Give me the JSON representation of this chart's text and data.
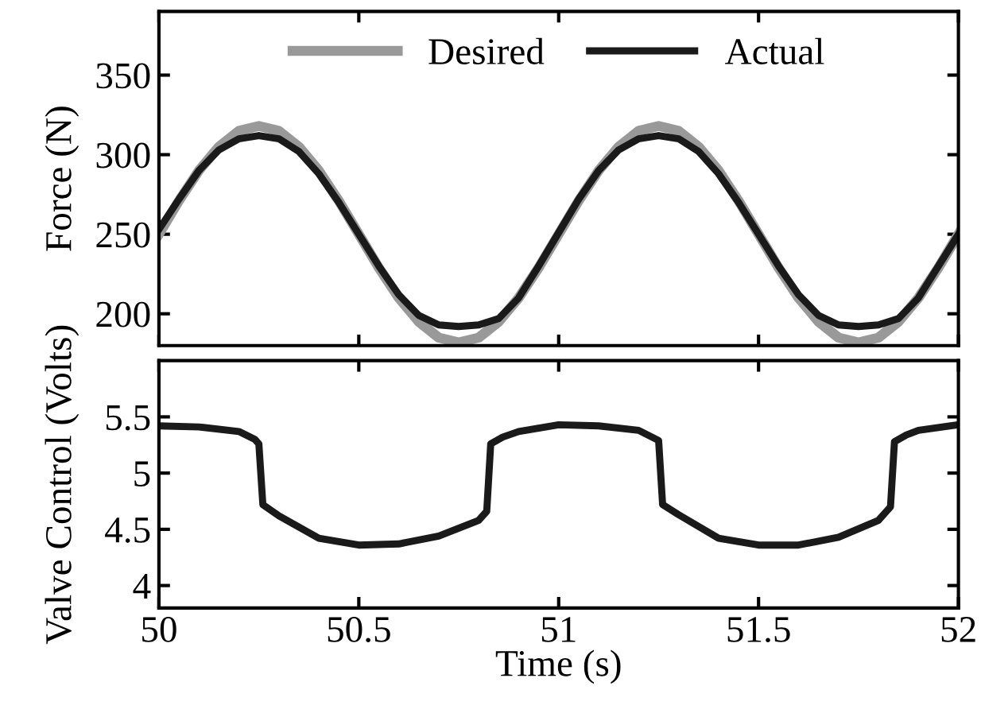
{
  "chart_data": [
    {
      "type": "line",
      "ylabel": "Force (N)",
      "xlim": [
        50,
        52
      ],
      "xticks": [
        50,
        50.5,
        51,
        51.5,
        52
      ],
      "ylim": [
        180,
        390
      ],
      "yticks": [
        200,
        250,
        300,
        350
      ],
      "tick_labels": "y",
      "legend": "top",
      "grid": false,
      "x": [
        50,
        50.05,
        50.1,
        50.15,
        50.2,
        50.25,
        50.3,
        50.35,
        50.4,
        50.45,
        50.5,
        50.55,
        50.6,
        50.65,
        50.7,
        50.75,
        50.8,
        50.85,
        50.9,
        50.95,
        51,
        51.05,
        51.1,
        51.15,
        51.2,
        51.25,
        51.3,
        51.35,
        51.4,
        51.45,
        51.5,
        51.55,
        51.6,
        51.65,
        51.7,
        51.75,
        51.8,
        51.85,
        51.9,
        51.95,
        52
      ],
      "series": [
        {
          "name": "Desired",
          "color": "#999999",
          "values": [
            250,
            271,
            290,
            305,
            315,
            318,
            315,
            305,
            290,
            271,
            250,
            229,
            210,
            195,
            185,
            182,
            185,
            195,
            210,
            229,
            250,
            271,
            290,
            305,
            315,
            318,
            315,
            305,
            290,
            271,
            250,
            229,
            210,
            195,
            185,
            182,
            185,
            195,
            210,
            229,
            250
          ]
        },
        {
          "name": "Actual",
          "color": "#1a1a1a",
          "values": [
            253,
            272,
            290,
            303,
            310,
            312,
            310,
            302,
            288,
            270,
            250,
            230,
            212,
            199,
            193,
            192,
            193,
            197,
            210,
            230,
            251,
            272,
            290,
            303,
            310,
            312,
            310,
            302,
            288,
            270,
            250,
            230,
            212,
            199,
            193,
            192,
            193,
            197,
            210,
            230,
            250
          ]
        }
      ]
    },
    {
      "type": "line",
      "xlabel": "Time (s)",
      "ylabel": "Valve Control (Volts)",
      "xlim": [
        50,
        52
      ],
      "xticks": [
        50,
        50.5,
        51,
        51.5,
        52
      ],
      "ylim": [
        3.8,
        6
      ],
      "yticks": [
        4,
        4.5,
        5,
        5.5
      ],
      "grid": false,
      "series": [
        {
          "color": "#1a1a1a",
          "x": [
            50,
            50.1,
            50.2,
            50.24,
            50.25,
            50.26,
            50.3,
            50.4,
            50.5,
            50.6,
            50.7,
            50.8,
            50.82,
            50.83,
            50.86,
            50.9,
            51.0,
            51.1,
            51.2,
            51.25,
            51.26,
            51.3,
            51.4,
            51.5,
            51.6,
            51.7,
            51.8,
            51.83,
            51.84,
            51.87,
            51.9,
            52.0
          ],
          "values": [
            5.42,
            5.41,
            5.37,
            5.3,
            5.26,
            4.72,
            4.62,
            4.42,
            4.36,
            4.37,
            4.44,
            4.58,
            4.66,
            5.26,
            5.32,
            5.37,
            5.43,
            5.42,
            5.38,
            5.29,
            4.72,
            4.63,
            4.42,
            4.36,
            4.36,
            4.43,
            4.58,
            4.7,
            5.28,
            5.34,
            5.38,
            5.43
          ]
        }
      ]
    }
  ]
}
